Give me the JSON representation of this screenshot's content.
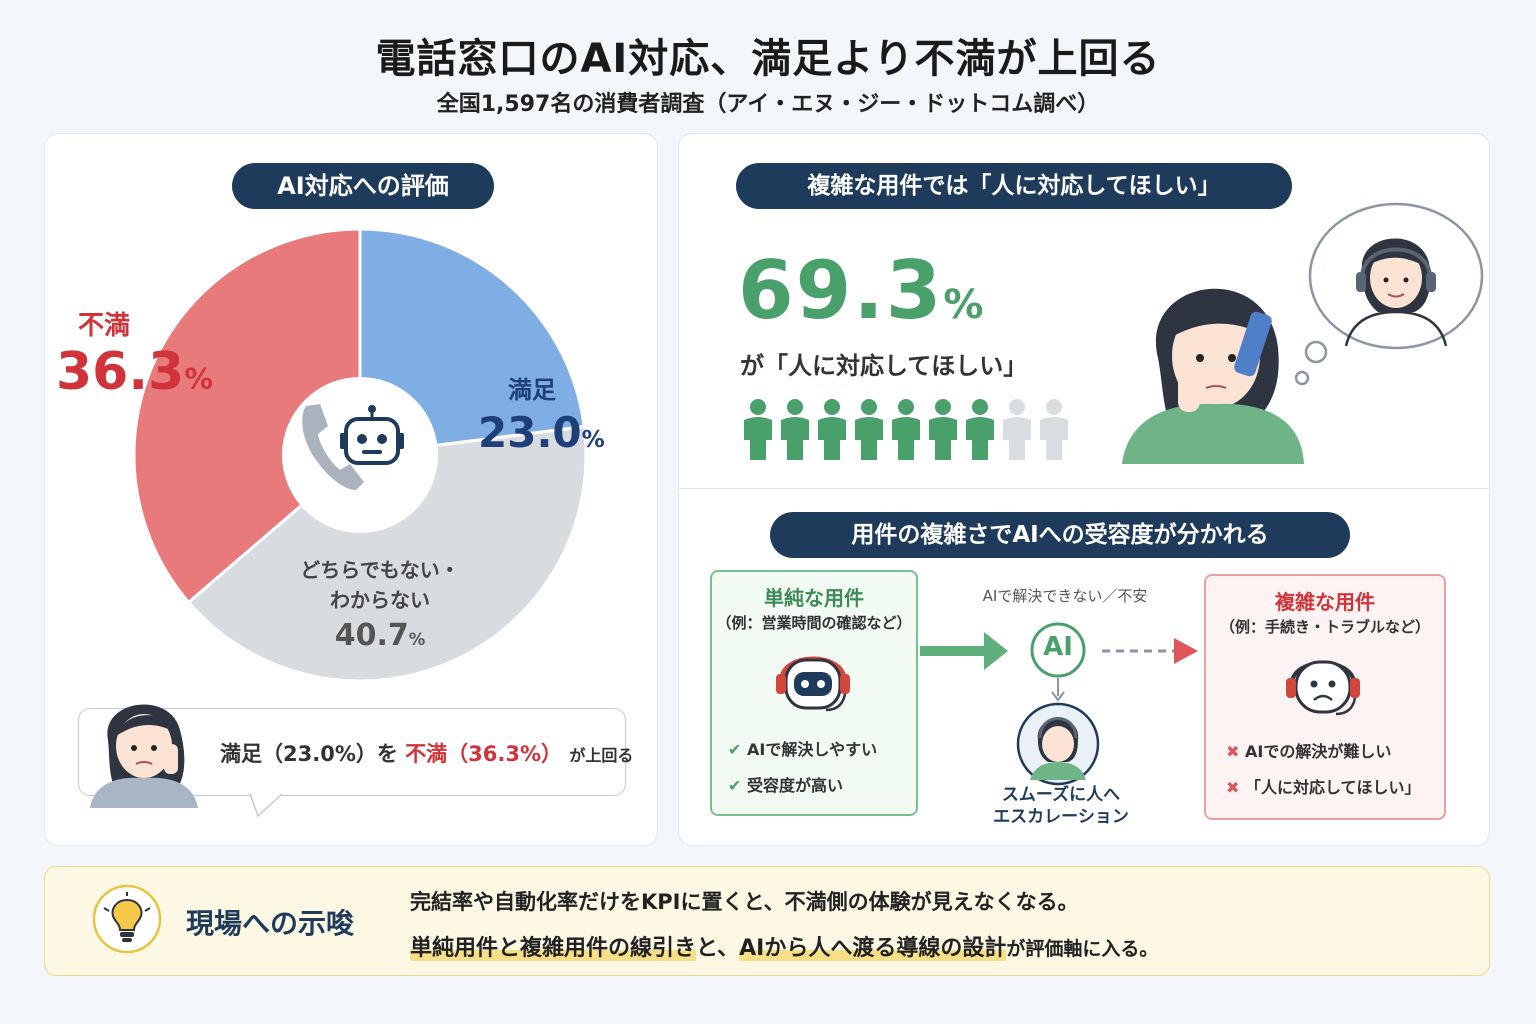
{
  "title": "電話窓口のAI対応、満足より不満が上回る",
  "subtitle": "全国1,597名の消費者調査（アイ・エヌ・ジー・ドットコム調べ）",
  "left_panel": {
    "heading": "AI対応への評価",
    "callout": {
      "part1": "満足（23.0%）を",
      "part2": "不満（36.3%）",
      "part3": "が上回る"
    }
  },
  "chart_data": {
    "type": "pie",
    "title": "AI対応への評価",
    "slices": [
      {
        "label": "満足",
        "value": 23.0,
        "display": "23.0",
        "color": "#7eaee3"
      },
      {
        "label": "どちらでもない・わからない",
        "value": 40.7,
        "display": "40.7",
        "color": "#d8dbe0"
      },
      {
        "label": "不満",
        "value": 36.3,
        "display": "36.3",
        "color": "#e87a7c"
      }
    ],
    "unit": "%",
    "donut": true
  },
  "right_top": {
    "heading": "複雑な用件では「人に対応してほしい」",
    "stat": "69.3",
    "stat_unit": "%",
    "caption": "が「人に対応してほしい」",
    "people_filled": 7,
    "people_total": 9
  },
  "right_bottom": {
    "heading": "用件の複雑さでAIへの受容度が分かれる",
    "simple": {
      "title": "単純な用件",
      "example": "（例：営業時間の確認など）",
      "points": [
        "AIで解決しやすい",
        "受容度が高い"
      ]
    },
    "flow_label": "AIで解決できない／不安",
    "ai_label": "AI",
    "escalation": [
      "スムーズに人へ",
      "エスカレーション"
    ],
    "complex": {
      "title": "複雑な用件",
      "example": "（例：手続き・トラブルなど）",
      "points": [
        "AIでの解決が難しい",
        "「人に対応してほしい」"
      ]
    }
  },
  "bottom": {
    "heading": "現場への示唆",
    "line1": "完結率や自動化率だけをKPIに置くと、不満側の体験が見えなくなる。",
    "line2_highlight_a": "単純用件と複雑用件の線引き",
    "line2_mid": "と、",
    "line2_highlight_b": "AIから人へ渡る導線の設計",
    "line2_end": "が評価軸に入る。"
  },
  "colors": {
    "navy": "#1f3b5c",
    "red": "#d0333a",
    "green": "#4aa06a",
    "blue": "#1f3f7a"
  }
}
